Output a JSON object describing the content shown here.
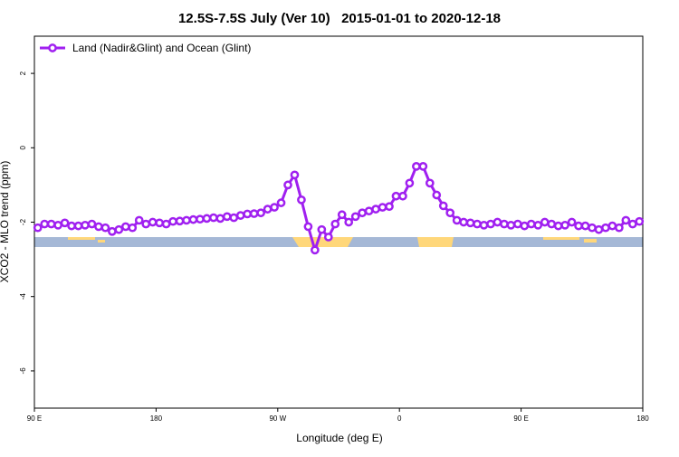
{
  "chart_data": {
    "type": "line",
    "title": "12.5S-7.5S July (Ver 10)   2015-01-01 to 2020-12-18",
    "x_label": "Longitude (deg E)",
    "y_label": "XCO2 - MLO trend (ppm)",
    "xlim": [
      90,
      540
    ],
    "ylim": [
      -7,
      3
    ],
    "xticks": [
      {
        "value": 90,
        "label": "90 E"
      },
      180,
      {
        "value": 270,
        "label": "90 W"
      },
      {
        "value": 360,
        "label": "0"
      },
      {
        "value": 450,
        "label": "90 E"
      },
      {
        "value": 540,
        "label": "180"
      }
    ],
    "yticks": [
      2,
      0,
      -2,
      -4,
      -6
    ],
    "legend": "topleft",
    "x": [
      92.5,
      97.5,
      102.5,
      107.5,
      112.5,
      117.5,
      122.5,
      127.5,
      132.5,
      137.5,
      142.5,
      147.5,
      152.5,
      157.5,
      162.5,
      167.5,
      172.5,
      177.5,
      182.5,
      187.5,
      192.5,
      197.5,
      202.5,
      207.5,
      212.5,
      217.5,
      222.5,
      227.5,
      232.5,
      237.5,
      242.5,
      247.5,
      252.5,
      257.5,
      262.5,
      267.5,
      272.5,
      277.5,
      282.5,
      287.5,
      292.5,
      297.5,
      302.5,
      307.5,
      312.5,
      317.5,
      322.5,
      327.5,
      332.5,
      337.5,
      342.5,
      347.5,
      352.5,
      357.5,
      362.5,
      367.5,
      372.5,
      377.5,
      382.5,
      387.5,
      392.5,
      397.5,
      402.5,
      407.5,
      412.5,
      417.5,
      422.5,
      427.5,
      432.5,
      437.5,
      442.5,
      447.5,
      452.5,
      457.5,
      462.5,
      467.5,
      472.5,
      477.5,
      482.5,
      487.5,
      492.5,
      497.5,
      502.5,
      507.5,
      512.5,
      517.5,
      522.5,
      527.5,
      532.5,
      537.5
    ],
    "series": [
      {
        "name": "Land (Nadir&Glint) and Ocean (Glint)",
        "color": "#a020f0",
        "values": [
          -2.15,
          -2.05,
          -2.05,
          -2.08,
          -2.02,
          -2.1,
          -2.1,
          -2.08,
          -2.05,
          -2.12,
          -2.15,
          -2.25,
          -2.2,
          -2.12,
          -2.15,
          -1.95,
          -2.05,
          -2.0,
          -2.02,
          -2.05,
          -1.98,
          -1.97,
          -1.95,
          -1.93,
          -1.92,
          -1.9,
          -1.88,
          -1.9,
          -1.85,
          -1.88,
          -1.82,
          -1.78,
          -1.77,
          -1.75,
          -1.65,
          -1.6,
          -1.48,
          -1.0,
          -0.73,
          -1.4,
          -2.12,
          -2.75,
          -2.2,
          -2.4,
          -2.05,
          -1.8,
          -2.0,
          -1.85,
          -1.75,
          -1.7,
          -1.65,
          -1.6,
          -1.58,
          -1.3,
          -1.3,
          -0.95,
          -0.5,
          -0.5,
          -0.95,
          -1.27,
          -1.56,
          -1.75,
          -1.95,
          -2.0,
          -2.02,
          -2.05,
          -2.08,
          -2.05,
          -2.0,
          -2.05,
          -2.08,
          -2.05,
          -2.1,
          -2.05,
          -2.08,
          -2.0,
          -2.05,
          -2.1,
          -2.08,
          -2.0,
          -2.1,
          -2.1,
          -2.15,
          -2.2,
          -2.15,
          -2.1,
          -2.15,
          -1.95,
          -2.05,
          -1.98
        ]
      }
    ]
  }
}
